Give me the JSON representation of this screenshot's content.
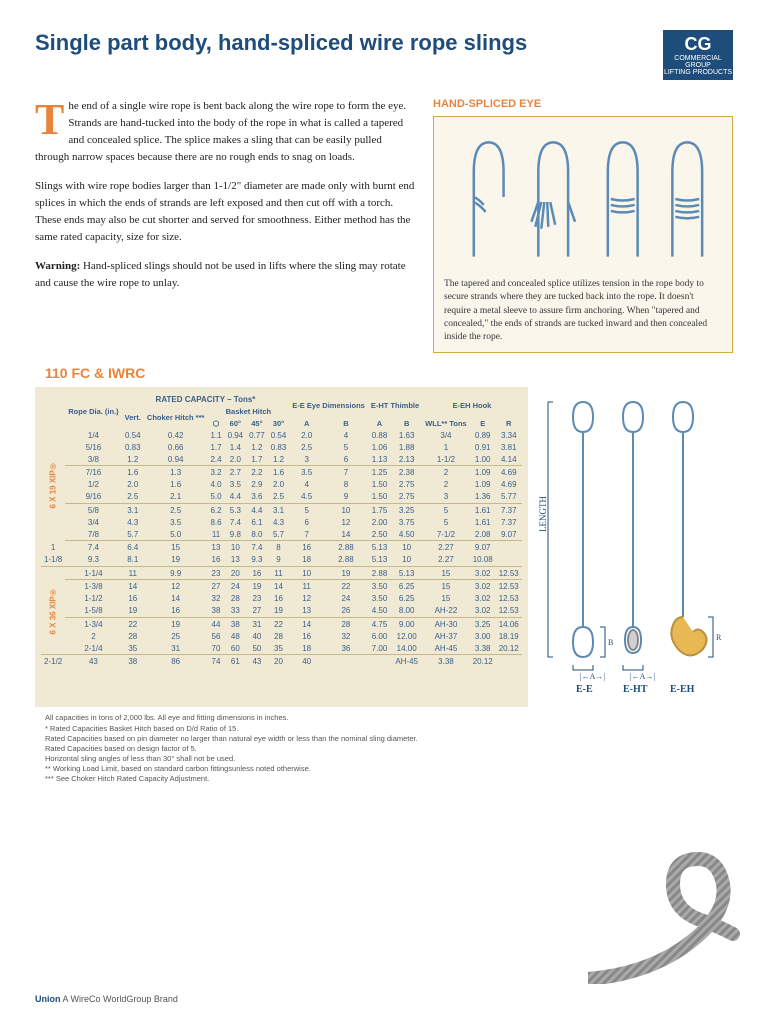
{
  "title": "Single part body, hand-spliced wire rope slings",
  "logo": {
    "main": "CG",
    "sub1": "COMMERCIAL GROUP",
    "sub2": "LIFTING PRODUCTS"
  },
  "para1": "he end of a single wire rope is bent back along the wire rope to form the eye. Strands are hand-tucked into the body of the rope in what is called a tapered and concealed splice. The splice makes a sling that can be easily pulled through narrow spaces because there are no rough ends to snag on loads.",
  "para2": "Slings with wire rope bodies larger than 1-1/2\" diameter are made only with burnt end splices in which the ends of strands are left exposed and then cut off with a torch. These ends may also be cut shorter and served for smoothness. Either method has the same rated capacity, size for size.",
  "warning_label": "Warning:",
  "warning_text": " Hand-spliced slings should not be used in lifts where the sling may rotate and cause the wire rope to unlay.",
  "diagram_title": "HAND-SPLICED EYE",
  "diagram_caption": "The tapered and concealed splice utilizes tension in the rope body to secure strands where they are tucked back into the rope. It doesn't require a metal sleeve to assure firm anchoring. When \"tapered and concealed,\" the ends of strands are tucked inward and then concealed inside the rope.",
  "section_title": "110 FC & IWRC",
  "table_headers": {
    "rated": "RATED CAPACITY – Tons*",
    "basket": "Basket Hitch",
    "ee": "E-E Eye Dimensions",
    "eht": "E-HT Thimble",
    "eeh": "E-EH Hook",
    "rope": "Rope Dia. (in.)",
    "vert": "Vert.",
    "choker": "Choker Hitch ***",
    "sixty": "60°",
    "fortyfive": "45°",
    "thirty": "30°",
    "a": "A",
    "b": "B",
    "wll": "WLL** Tons",
    "e": "E",
    "r": "R"
  },
  "groups": {
    "g1": "6 X 19 XIP®",
    "g2": "6 X 36 XIP®"
  },
  "rows": [
    [
      "1/4",
      "0.54",
      "0.42",
      "1.1",
      "0.94",
      "0.77",
      "0.54",
      "2.0",
      "4",
      "0.88",
      "1.63",
      "3/4",
      "0.89",
      "3.34"
    ],
    [
      "5/16",
      "0.83",
      "0.66",
      "1.7",
      "1.4",
      "1.2",
      "0.83",
      "2.5",
      "5",
      "1.06",
      "1.88",
      "1",
      "0.91",
      "3.81"
    ],
    [
      "3/8",
      "1.2",
      "0.94",
      "2.4",
      "2.0",
      "1.7",
      "1.2",
      "3",
      "6",
      "1.13",
      "2.13",
      "1-1/2",
      "1.00",
      "4.14"
    ],
    [
      "7/16",
      "1.6",
      "1.3",
      "3.2",
      "2.7",
      "2.2",
      "1.6",
      "3.5",
      "7",
      "1.25",
      "2.38",
      "2",
      "1.09",
      "4.69"
    ],
    [
      "1/2",
      "2.0",
      "1.6",
      "4.0",
      "3.5",
      "2.9",
      "2.0",
      "4",
      "8",
      "1.50",
      "2.75",
      "2",
      "1.09",
      "4.69"
    ],
    [
      "9/16",
      "2.5",
      "2.1",
      "5.0",
      "4.4",
      "3.6",
      "2.5",
      "4.5",
      "9",
      "1.50",
      "2.75",
      "3",
      "1.36",
      "5.77"
    ],
    [
      "5/8",
      "3.1",
      "2.5",
      "6.2",
      "5.3",
      "4.4",
      "3.1",
      "5",
      "10",
      "1.75",
      "3.25",
      "5",
      "1.61",
      "7.37"
    ],
    [
      "3/4",
      "4.3",
      "3.5",
      "8.6",
      "7.4",
      "6.1",
      "4.3",
      "6",
      "12",
      "2.00",
      "3.75",
      "5",
      "1.61",
      "7.37"
    ],
    [
      "7/8",
      "5.7",
      "5.0",
      "11",
      "9.8",
      "8.0",
      "5.7",
      "7",
      "14",
      "2.50",
      "4.50",
      "7-1/2",
      "2.08",
      "9.07"
    ],
    [
      "1",
      "7.4",
      "6.4",
      "15",
      "13",
      "10",
      "7.4",
      "8",
      "16",
      "2.88",
      "5.13",
      "10",
      "2.27",
      "9.07"
    ],
    [
      "1-1/8",
      "9.3",
      "8.1",
      "19",
      "16",
      "13",
      "9.3",
      "9",
      "18",
      "2.88",
      "5.13",
      "10",
      "2.27",
      "10.08"
    ],
    [
      "1-1/4",
      "11",
      "9.9",
      "23",
      "20",
      "16",
      "11",
      "10",
      "19",
      "2.88",
      "5.13",
      "15",
      "3.02",
      "12.53"
    ],
    [
      "1-3/8",
      "14",
      "12",
      "27",
      "24",
      "19",
      "14",
      "11",
      "22",
      "3.50",
      "6.25",
      "15",
      "3.02",
      "12.53"
    ],
    [
      "1-1/2",
      "16",
      "14",
      "32",
      "28",
      "23",
      "16",
      "12",
      "24",
      "3.50",
      "6.25",
      "15",
      "3.02",
      "12.53"
    ],
    [
      "1-5/8",
      "19",
      "16",
      "38",
      "33",
      "27",
      "19",
      "13",
      "26",
      "4.50",
      "8.00",
      "AH-22",
      "3.02",
      "12.53"
    ],
    [
      "1-3/4",
      "22",
      "19",
      "44",
      "38",
      "31",
      "22",
      "14",
      "28",
      "4.75",
      "9.00",
      "AH-30",
      "3.25",
      "14.06"
    ],
    [
      "2",
      "28",
      "25",
      "56",
      "48",
      "40",
      "28",
      "16",
      "32",
      "6.00",
      "12.00",
      "AH-37",
      "3.00",
      "18.19"
    ],
    [
      "2-1/4",
      "35",
      "31",
      "70",
      "60",
      "50",
      "35",
      "18",
      "36",
      "7.00",
      "14.00",
      "AH-45",
      "3.38",
      "20.12"
    ],
    [
      "2-1/2",
      "43",
      "38",
      "86",
      "74",
      "61",
      "43",
      "20",
      "40",
      "",
      "",
      "AH-45",
      "3.38",
      "20.12"
    ]
  ],
  "footnotes": [
    "All capacities in tons of 2,000 lbs. All eye and fitting dimensions in inches.",
    "* Rated Capacities Basket Hitch based on D/d Ratio of 15.",
    "Rated Capacities based on pin diameter no larger than natural eye width or less than the nominal sling diameter.",
    "Rated Capacities based on design factor of 5.",
    "Horizontal sling angles of less than 30° shall not be used.",
    "** Working Load Limit, based on standard carbon fittingsunless noted otherwise.",
    "*** See Choker Hitch Rated Capacity Adjustment."
  ],
  "sling_labels": {
    "length": "LENGTH",
    "ee": "E-E",
    "eht": "E-HT",
    "eeh": "E-EH",
    "a": "A",
    "b": "B",
    "e": "E",
    "r": "R"
  },
  "footer": {
    "brand": "Union",
    "text": " A WireCo WorldGroup Brand"
  },
  "colors": {
    "blue": "#1e4d7b",
    "orange": "#e8843c",
    "table_bg": "#f0ead5",
    "rope_blue": "#5b8bb5",
    "box_border": "#d4a84a",
    "box_bg": "#faf6ec"
  }
}
